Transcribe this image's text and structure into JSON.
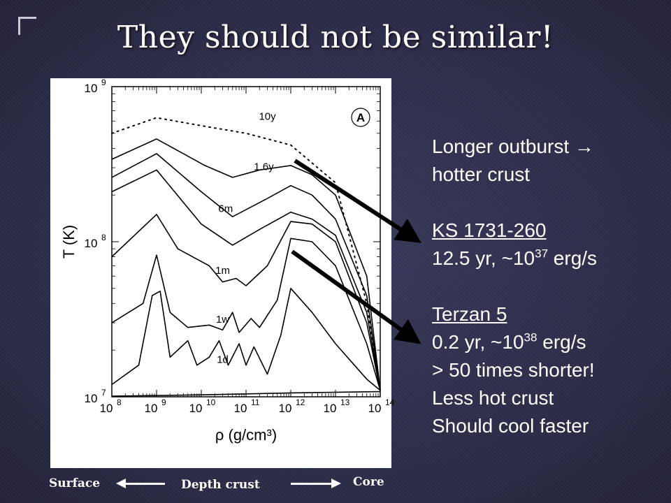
{
  "slide": {
    "title": "They should not be similar!"
  },
  "bullets": {
    "line1": "Longer outburst",
    "arrow": "→",
    "line2": "hotter crust",
    "source1_name": "KS 1731-260",
    "source1_detail_prefix": "12.5 yr, ~10",
    "source1_exp": "37",
    "source1_detail_suffix": " erg/s",
    "source2_name": "Terzan 5",
    "source2_detail_prefix": "0.2 yr, ~10",
    "source2_exp": "38",
    "source2_detail_suffix": " erg/s",
    "line_shorter": "> 50 times shorter!",
    "line_less_hot": "Less hot crust",
    "line_cool": "Should cool faster"
  },
  "depth_axis": {
    "surface": "Surface",
    "middle": "Depth crust",
    "core": "Core"
  },
  "chart_data": {
    "type": "line",
    "panel_label": "A",
    "xlabel": "ρ (g/cm³)",
    "ylabel": "T (K)",
    "x_scale": "log",
    "y_scale": "log",
    "xlim": [
      100000000.0,
      100000000000000.0
    ],
    "ylim": [
      10000000.0,
      1000000000.0
    ],
    "x_ticks": [
      {
        "base": "10",
        "exp": "8",
        "value": 100000000.0
      },
      {
        "base": "10",
        "exp": "9",
        "value": 1000000000.0
      },
      {
        "base": "10",
        "exp": "10",
        "value": 10000000000.0
      },
      {
        "base": "10",
        "exp": "11",
        "value": 100000000000.0
      },
      {
        "base": "10",
        "exp": "12",
        "value": 1000000000000.0
      },
      {
        "base": "10",
        "exp": "13",
        "value": 10000000000000.0
      },
      {
        "base": "10",
        "exp": "14",
        "value": 100000000000000.0
      }
    ],
    "y_ticks": [
      {
        "base": "10",
        "exp": "7",
        "value": 10000000.0
      },
      {
        "base": "10",
        "exp": "8",
        "value": 100000000.0
      },
      {
        "base": "10",
        "exp": "9",
        "value": 1000000000.0
      }
    ],
    "series": [
      {
        "name": "10y",
        "style": "dotted",
        "label_at": [
          300000000000.0,
          610000000.0
        ],
        "points": [
          [
            100000000.0,
            500000000.0
          ],
          [
            1000000000.0,
            630000000.0
          ],
          [
            10000000000.0,
            560000000.0
          ],
          [
            100000000000.0,
            500000000.0
          ],
          [
            1000000000000.0,
            420000000.0
          ],
          [
            10000000000000.0,
            240000000.0
          ],
          [
            50000000000000.0,
            40000000.0
          ],
          [
            100000000000000.0,
            11000000.0
          ]
        ]
      },
      {
        "name": "1.6y",
        "style": "solid",
        "label_at": [
          250000000000.0,
          290000000.0
        ],
        "points": [
          [
            100000000.0,
            340000000.0
          ],
          [
            1000000000.0,
            460000000.0
          ],
          [
            12000000000.0,
            310000000.0
          ],
          [
            50000000000.0,
            260000000.0
          ],
          [
            200000000000.0,
            290000000.0
          ],
          [
            1000000000000.0,
            310000000.0
          ],
          [
            3000000000000.0,
            270000000.0
          ],
          [
            10000000000000.0,
            200000000.0
          ],
          [
            50000000000000.0,
            60000000.0
          ],
          [
            100000000000000.0,
            11000000.0
          ]
        ]
      },
      {
        "name": "6m",
        "style": "solid",
        "label_at": [
          35000000000.0,
          155000000.0
        ],
        "points": [
          [
            100000000.0,
            260000000.0
          ],
          [
            1000000000.0,
            370000000.0
          ],
          [
            10000000000.0,
            210000000.0
          ],
          [
            50000000000.0,
            145000000.0
          ],
          [
            300000000000.0,
            190000000.0
          ],
          [
            1000000000000.0,
            230000000.0
          ],
          [
            3000000000000.0,
            200000000.0
          ],
          [
            10000000000000.0,
            140000000.0
          ],
          [
            50000000000000.0,
            45000000.0
          ],
          [
            100000000000000.0,
            11000000.0
          ]
        ]
      },
      {
        "name": "",
        "style": "solid",
        "points": [
          [
            100000000.0,
            210000000.0
          ],
          [
            1000000000.0,
            290000000.0
          ],
          [
            10000000000.0,
            130000000.0
          ],
          [
            50000000000.0,
            95000000.0
          ],
          [
            200000000000.0,
            120000000.0
          ],
          [
            1000000000000.0,
            155000000.0
          ],
          [
            3000000000000.0,
            140000000.0
          ],
          [
            10000000000000.0,
            110000000.0
          ],
          [
            50000000000000.0,
            35000000.0
          ],
          [
            100000000000000.0,
            11000000.0
          ]
        ]
      },
      {
        "name": "1m",
        "style": "solid",
        "label_at": [
          30000000000.0,
          62000000.0
        ],
        "points": [
          [
            100000000.0,
            80000000.0
          ],
          [
            1000000000.0,
            150000000.0
          ],
          [
            3000000000.0,
            90000000.0
          ],
          [
            15000000000.0,
            70000000.0
          ],
          [
            30000000000.0,
            55000000.0
          ],
          [
            60000000000.0,
            58000000.0
          ],
          [
            100000000000.0,
            52000000.0
          ],
          [
            300000000000.0,
            70000000.0
          ],
          [
            1000000000000.0,
            135000000.0
          ],
          [
            3000000000000.0,
            130000000.0
          ],
          [
            10000000000000.0,
            100000000.0
          ],
          [
            50000000000000.0,
            30000000.0
          ],
          [
            100000000000000.0,
            11000000.0
          ]
        ]
      },
      {
        "name": "1w",
        "style": "solid",
        "label_at": [
          30000000000.0,
          30000000.0
        ],
        "points": [
          [
            100000000.0,
            30000000.0
          ],
          [
            500000000.0,
            40000000.0
          ],
          [
            1000000000.0,
            82000000.0
          ],
          [
            2000000000.0,
            35000000.0
          ],
          [
            5000000000.0,
            28000000.0
          ],
          [
            15000000000.0,
            29000000.0
          ],
          [
            30000000000.0,
            27000000.0
          ],
          [
            50000000000.0,
            35000000.0
          ],
          [
            70000000000.0,
            26000000.0
          ],
          [
            130000000000.0,
            32000000.0
          ],
          [
            200000000000.0,
            28000000.0
          ],
          [
            500000000000.0,
            42000000.0
          ],
          [
            1000000000000.0,
            105000000.0
          ],
          [
            3000000000000.0,
            100000000.0
          ],
          [
            10000000000000.0,
            70000000.0
          ],
          [
            50000000000000.0,
            22000000.0
          ],
          [
            100000000000000.0,
            11000000.0
          ]
        ]
      },
      {
        "name": "1d",
        "style": "solid",
        "label_at": [
          30000000000.0,
          16500000.0
        ],
        "points": [
          [
            100000000.0,
            12000000.0
          ],
          [
            400000000.0,
            16000000.0
          ],
          [
            800000000.0,
            45000000.0
          ],
          [
            1200000000.0,
            48000000.0
          ],
          [
            2000000000.0,
            18000000.0
          ],
          [
            5000000000.0,
            23000000.0
          ],
          [
            8000000000.0,
            16000000.0
          ],
          [
            15000000000.0,
            18000000.0
          ],
          [
            25000000000.0,
            23000000.0
          ],
          [
            40000000000.0,
            16000000.0
          ],
          [
            70000000000.0,
            22000000.0
          ],
          [
            100000000000.0,
            16000000.0
          ],
          [
            150000000000.0,
            21000000.0
          ],
          [
            300000000000.0,
            14000000.0
          ],
          [
            600000000000.0,
            25000000.0
          ],
          [
            1000000000000.0,
            50000000.0
          ],
          [
            3000000000000.0,
            35000000.0
          ],
          [
            10000000000000.0,
            22000000.0
          ],
          [
            50000000000000.0,
            13000000.0
          ],
          [
            100000000000000.0,
            11000000.0
          ]
        ]
      },
      {
        "name": "",
        "style": "solid",
        "points": [
          [
            100000000.0,
            10100000.0
          ],
          [
            10000000000.0,
            10300000.0
          ],
          [
            1000000000000.0,
            10600000.0
          ],
          [
            100000000000000.0,
            10800000.0
          ]
        ]
      }
    ]
  }
}
